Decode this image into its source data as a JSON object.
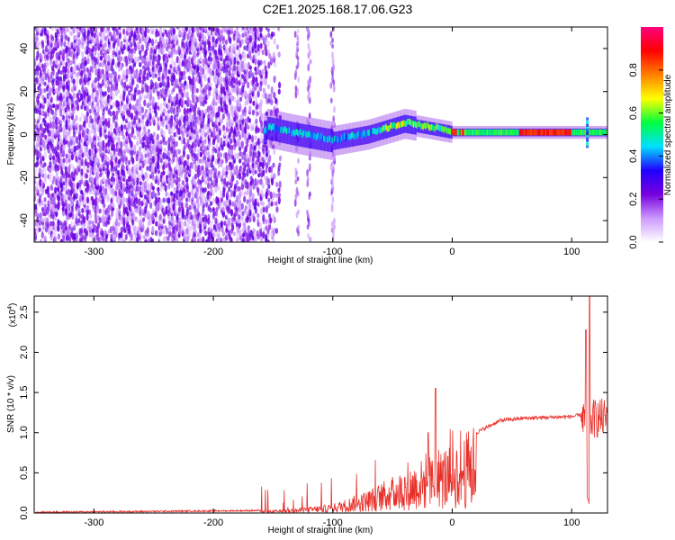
{
  "title": "C2E1.2025.168.17.06.G23",
  "chart_data": [
    {
      "type": "heatmap",
      "xlabel": "Height of straight line (km)",
      "ylabel": "Frequency (Hz)",
      "xlim": [
        -350,
        130
      ],
      "ylim": [
        -50,
        50
      ],
      "x_ticks": [
        -300,
        -200,
        -100,
        0,
        100
      ],
      "y_ticks": [
        -40,
        -20,
        0,
        20,
        40
      ],
      "colorbar": {
        "label": "Normalized spectral amplitude",
        "range": [
          0,
          1
        ],
        "ticks": [
          "0.0",
          "0.2",
          "0.4",
          "0.6",
          "0.8"
        ],
        "colors": [
          "#ffffff",
          "#cc99ff",
          "#7700dd",
          "#2000ff",
          "#00e0ff",
          "#00ff40",
          "#ffff00",
          "#ff8000",
          "#ff0000",
          "#ff0080"
        ]
      },
      "features": {
        "noise_region_x": [
          -350,
          -155
        ],
        "strong_noise_bands_x": [
          -130,
          -120,
          -100
        ],
        "signal_trace": [
          {
            "x": -155,
            "f": 3
          },
          {
            "x": -130,
            "f": 0
          },
          {
            "x": -100,
            "f": -3
          },
          {
            "x": -70,
            "f": 0
          },
          {
            "x": -40,
            "f": 5
          },
          {
            "x": -20,
            "f": 3
          },
          {
            "x": 0,
            "f": 1
          },
          {
            "x": 50,
            "f": 1
          },
          {
            "x": 100,
            "f": 1
          },
          {
            "x": 130,
            "f": 1
          }
        ]
      }
    },
    {
      "type": "line",
      "xlabel": "Height of straight line (km)",
      "ylabel": "SNR (10 * v/v)",
      "multiplier": "(x10",
      "multiplier_exp": "4",
      "xlim": [
        -350,
        130
      ],
      "ylim": [
        0,
        2.7
      ],
      "x_ticks": [
        -300,
        -200,
        -100,
        0,
        100
      ],
      "y_ticks": [
        "0.0",
        "0.5",
        "1.0",
        "1.5",
        "2.0",
        "2.5"
      ],
      "line_color": "#e8302a",
      "envelope": [
        {
          "x": -350,
          "y": 0.0
        },
        {
          "x": -160,
          "y": 0.02
        },
        {
          "x": -130,
          "y": 0.05
        },
        {
          "x": -100,
          "y": 0.1
        },
        {
          "x": -70,
          "y": 0.25
        },
        {
          "x": -50,
          "y": 0.4
        },
        {
          "x": -30,
          "y": 0.55
        },
        {
          "x": -10,
          "y": 0.7
        },
        {
          "x": 10,
          "y": 0.85
        },
        {
          "x": 20,
          "y": 1.0
        },
        {
          "x": 40,
          "y": 1.15
        },
        {
          "x": 60,
          "y": 1.18
        },
        {
          "x": 100,
          "y": 1.2
        },
        {
          "x": 108,
          "y": 1.22
        },
        {
          "x": 113,
          "y": 1.15
        },
        {
          "x": 120,
          "y": 1.18
        },
        {
          "x": 130,
          "y": 1.18
        }
      ],
      "spikes": [
        {
          "x": -14,
          "y": 1.55
        },
        {
          "x": -20,
          "y": 1.0
        },
        {
          "x": 112,
          "y": 2.28
        },
        {
          "x": 115,
          "y": 2.7
        }
      ]
    }
  ]
}
